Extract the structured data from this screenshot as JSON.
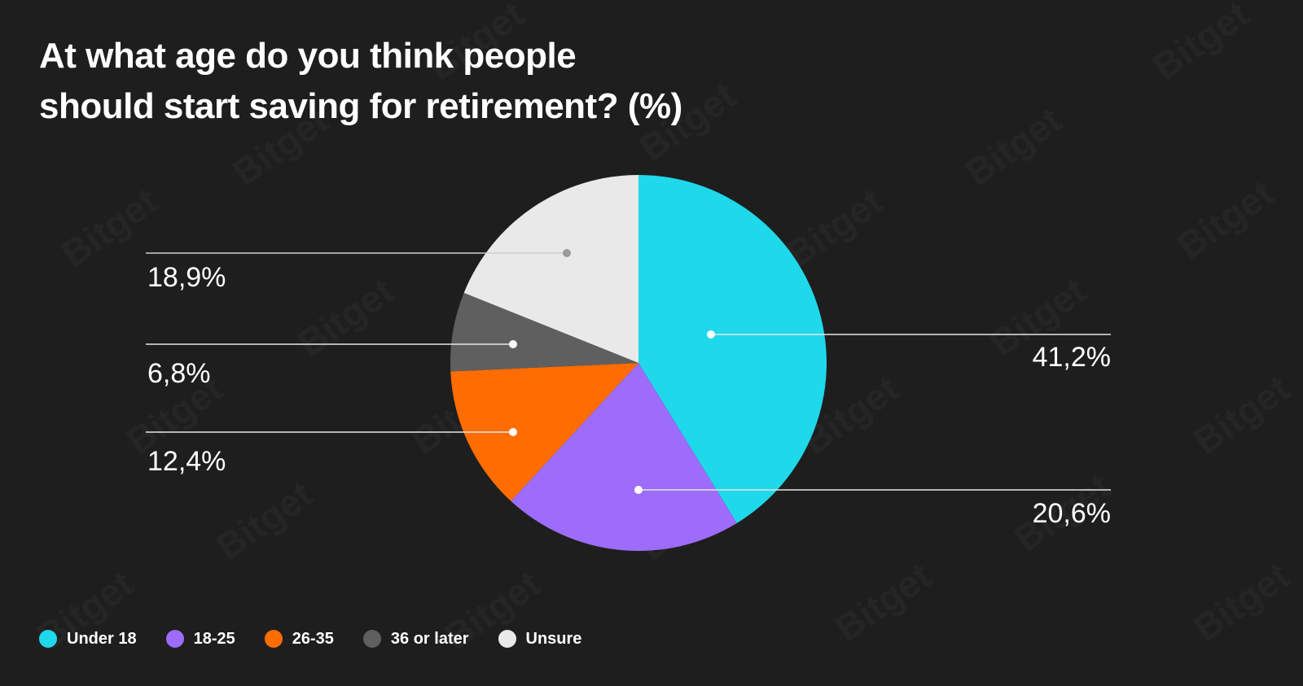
{
  "title": {
    "line1": "At what age do you think people",
    "line2": "should start saving for retirement? (%)"
  },
  "watermark": "Bitget",
  "chart_data": {
    "type": "pie",
    "title": "At what age do you think people should start saving for retirement? (%)",
    "categories": [
      "Under 18",
      "18-25",
      "26-35",
      "36 or later",
      "Unsure"
    ],
    "values": [
      41.2,
      20.6,
      12.4,
      6.8,
      18.9
    ],
    "value_labels": [
      "41,2%",
      "20,6%",
      "12,4%",
      "6,8%",
      "18,9%"
    ],
    "colors": [
      "#1fd8ea",
      "#9d6cfa",
      "#ff6c02",
      "#5f5f5f",
      "#e9e9e9"
    ],
    "start_angle_deg": 0,
    "direction": "clockwise",
    "legend": "bottom-left"
  }
}
